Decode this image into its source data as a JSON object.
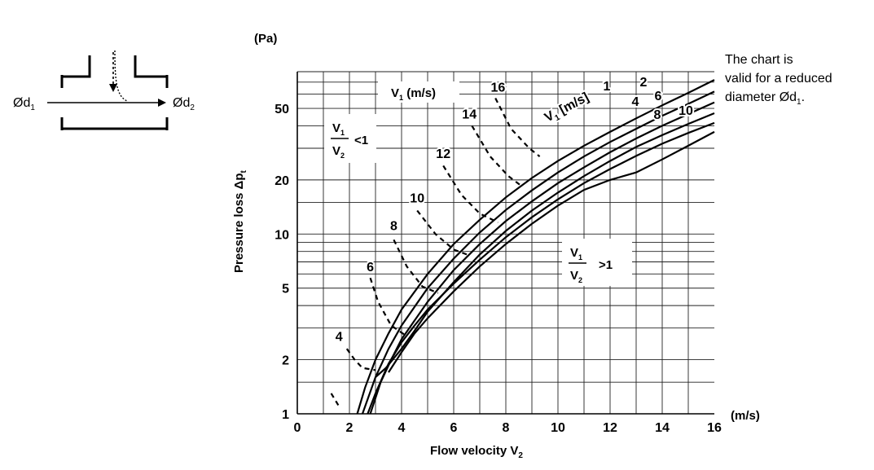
{
  "schematic": {
    "left_diameter": "Ød",
    "left_diameter_sub": "1",
    "right_diameter": "Ød",
    "right_diameter_sub": "2"
  },
  "note": {
    "line1": "The chart is",
    "line2": "valid for a reduced",
    "line3": "diameter Ød",
    "line3_sub": "1",
    "line3_end": "."
  },
  "chart_data": {
    "type": "line",
    "title": "",
    "unit_y": "(Pa)",
    "unit_x": "(m/s)",
    "xlabel": "Flow velocity V",
    "xlabel_sub": "2",
    "ylabel": "Pressure loss Δp",
    "ylabel_sub": "t",
    "xlim": [
      0,
      16
    ],
    "ylim": [
      1,
      80
    ],
    "y_scale": "log",
    "x_ticks": [
      {
        "value": 0,
        "label": "0"
      },
      {
        "value": 2,
        "label": "2"
      },
      {
        "value": 4,
        "label": "4"
      },
      {
        "value": 6,
        "label": "6"
      },
      {
        "value": 8,
        "label": "8"
      },
      {
        "value": 10,
        "label": "10"
      },
      {
        "value": 12,
        "label": "12"
      },
      {
        "value": 14,
        "label": "14"
      },
      {
        "value": 16,
        "label": "16"
      }
    ],
    "y_ticks": [
      {
        "value": 1,
        "label": "1"
      },
      {
        "value": 2,
        "label": "2"
      },
      {
        "value": 5,
        "label": "5"
      },
      {
        "value": 10,
        "label": "10"
      },
      {
        "value": 20,
        "label": "20"
      },
      {
        "value": 50,
        "label": "50"
      }
    ],
    "region_labels": {
      "below_one": {
        "numerator": "V",
        "numerator_sub": "1",
        "denominator": "V",
        "denominator_sub": "2",
        "relation": "<1"
      },
      "above_one": {
        "numerator": "V",
        "numerator_sub": "1",
        "denominator": "V",
        "denominator_sub": "2",
        "relation": ">1"
      }
    },
    "dashed_header": {
      "text": "V",
      "sub": "1",
      "rest": " (m/s)"
    },
    "solid_header": {
      "text": "V",
      "sub": "1",
      "rest": " [m/s]"
    },
    "series_solid": [
      {
        "name": "1",
        "x": [
          2.3,
          2.6,
          3.0,
          3.5,
          4.0,
          5.0,
          6.0,
          7.0,
          8.0,
          9.0,
          10.0,
          11.0,
          12.0,
          13.0,
          14.0,
          15.0,
          16.0
        ],
        "y": [
          1.0,
          1.4,
          2.0,
          2.8,
          3.8,
          6.0,
          8.8,
          12.0,
          16.0,
          20.5,
          25.5,
          31.0,
          37.0,
          44.0,
          52.0,
          61.0,
          72.0
        ]
      },
      {
        "name": "2",
        "x": [
          2.5,
          3.0,
          3.5,
          4.0,
          5.0,
          6.0,
          7.0,
          8.0,
          9.0,
          10.0,
          11.0,
          12.0,
          13.0,
          14.0,
          15.0,
          16.0
        ],
        "y": [
          1.0,
          1.6,
          2.3,
          3.1,
          5.0,
          7.3,
          10.2,
          13.6,
          17.5,
          22.0,
          27.0,
          32.5,
          38.5,
          45.5,
          53.0,
          62.0
        ]
      },
      {
        "name": "4",
        "x": [
          2.8,
          3.2,
          3.6,
          4.0,
          5.0,
          6.0,
          7.0,
          8.0,
          9.0,
          10.0,
          11.0,
          12.0,
          13.0,
          14.0,
          15.0,
          16.0
        ],
        "y": [
          1.0,
          1.5,
          2.0,
          2.6,
          4.2,
          6.3,
          8.8,
          11.8,
          15.2,
          19.2,
          23.5,
          28.5,
          34.0,
          40.0,
          46.5,
          54.0
        ]
      },
      {
        "name": "6",
        "x": [
          3.0,
          3.4,
          4.0,
          4.5,
          5.0,
          6.0,
          7.0,
          8.0,
          9.0,
          10.0,
          11.0,
          12.0,
          13.0,
          14.0,
          15.0,
          16.0
        ],
        "y": [
          1.6,
          1.8,
          2.3,
          2.9,
          3.7,
          5.4,
          7.7,
          10.4,
          13.5,
          17.0,
          21.0,
          25.5,
          30.5,
          35.5,
          41.0,
          47.0
        ]
      },
      {
        "name": "8",
        "x": [
          2.7,
          3.0,
          3.5,
          4.0,
          4.5,
          5.0,
          6.0,
          7.0,
          8.0,
          9.0,
          10.0,
          11.0,
          12.0,
          13.0,
          14.0,
          15.0,
          16.0
        ],
        "y": [
          1.0,
          1.3,
          1.9,
          2.5,
          3.1,
          3.8,
          5.3,
          7.2,
          9.6,
          12.4,
          15.6,
          19.2,
          23.0,
          27.2,
          31.8,
          36.5,
          41.5
        ]
      },
      {
        "name": "10",
        "x": [
          3.5,
          4.0,
          4.5,
          5.0,
          6.0,
          7.0,
          8.0,
          9.0,
          10.0,
          11.0,
          12.0,
          13.0,
          14.0,
          15.0,
          16.0
        ],
        "y": [
          1.7,
          2.2,
          2.8,
          3.4,
          4.8,
          6.6,
          8.8,
          11.4,
          14.4,
          17.6,
          20.0,
          22.0,
          26.0,
          31.0,
          37.0
        ]
      }
    ],
    "series_dashed": [
      {
        "name": "4",
        "x": [
          1.3,
          1.6
        ],
        "y": [
          1.3,
          1.1
        ]
      },
      {
        "name": "4",
        "x": [
          1.9,
          2.2,
          2.5,
          3.0
        ],
        "y": [
          2.3,
          2.0,
          1.8,
          1.75
        ]
      },
      {
        "name": "6",
        "x": [
          2.8,
          3.1,
          3.6,
          4.2
        ],
        "y": [
          5.7,
          4.2,
          3.1,
          2.7
        ]
      },
      {
        "name": "8",
        "x": [
          3.7,
          4.2,
          4.8,
          5.4
        ],
        "y": [
          9.3,
          6.6,
          5.1,
          4.7
        ]
      },
      {
        "name": "10",
        "x": [
          4.6,
          5.3,
          6.0,
          6.6
        ],
        "y": [
          13.5,
          10.0,
          8.2,
          7.6
        ]
      },
      {
        "name": "12",
        "x": [
          5.6,
          6.3,
          7.0,
          7.7
        ],
        "y": [
          24.0,
          16.5,
          13.0,
          11.6
        ]
      },
      {
        "name": "14",
        "x": [
          6.7,
          7.4,
          8.1,
          8.6
        ],
        "y": [
          40.0,
          27.0,
          21.0,
          18.5
        ]
      },
      {
        "name": "16",
        "x": [
          7.6,
          8.2,
          8.9,
          9.3
        ],
        "y": [
          57.0,
          38.5,
          30.0,
          27.0
        ]
      }
    ],
    "dashed_labels": [
      {
        "text": "4",
        "x": 1.6,
        "y": 2.55
      },
      {
        "text": "6",
        "x": 2.8,
        "y": 6.2
      },
      {
        "text": "8",
        "x": 3.7,
        "y": 10.5
      },
      {
        "text": "10",
        "x": 4.6,
        "y": 15.0
      },
      {
        "text": "12",
        "x": 5.6,
        "y": 26.5
      },
      {
        "text": "14",
        "x": 6.6,
        "y": 44.0
      },
      {
        "text": "16",
        "x": 7.7,
        "y": 62.0
      }
    ],
    "solid_labels": [
      "1",
      "2",
      "4",
      "6",
      "8",
      "10"
    ]
  }
}
